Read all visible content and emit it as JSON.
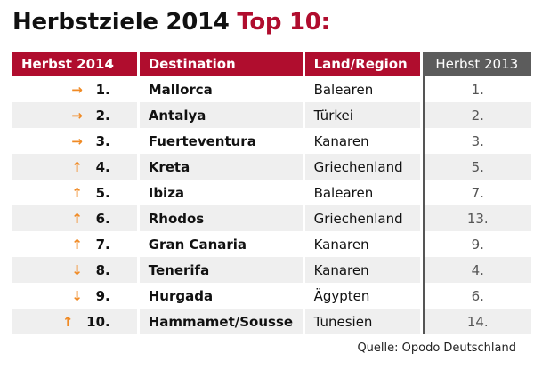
{
  "title": {
    "main": "Herbstziele 2014",
    "accent": "Top 10:"
  },
  "headers": [
    "Herbst 2014",
    "Destination",
    "Land/Region",
    "Herbst 2013"
  ],
  "colors": {
    "header_red": "#b00d2e",
    "header_gray": "#5c5c5c",
    "arrow": "#f08a24"
  },
  "rows": [
    {
      "trend": "→",
      "trend_icon": "arrow-right-icon",
      "rank": "1.",
      "destination": "Mallorca",
      "region": "Balearen",
      "prev": "1."
    },
    {
      "trend": "→",
      "trend_icon": "arrow-right-icon",
      "rank": "2.",
      "destination": "Antalya",
      "region": "Türkei",
      "prev": "2."
    },
    {
      "trend": "→",
      "trend_icon": "arrow-right-icon",
      "rank": "3.",
      "destination": "Fuerteventura",
      "region": "Kanaren",
      "prev": "3."
    },
    {
      "trend": "↑",
      "trend_icon": "arrow-up-icon",
      "rank": "4.",
      "destination": "Kreta",
      "region": "Griechenland",
      "prev": "5."
    },
    {
      "trend": "↑",
      "trend_icon": "arrow-up-icon",
      "rank": "5.",
      "destination": "Ibiza",
      "region": "Balearen",
      "prev": "7."
    },
    {
      "trend": "↑",
      "trend_icon": "arrow-up-icon",
      "rank": "6.",
      "destination": "Rhodos",
      "region": "Griechenland",
      "prev": "13."
    },
    {
      "trend": "↑",
      "trend_icon": "arrow-up-icon",
      "rank": "7.",
      "destination": "Gran Canaria",
      "region": "Kanaren",
      "prev": "9."
    },
    {
      "trend": "↓",
      "trend_icon": "arrow-down-icon",
      "rank": "8.",
      "destination": "Tenerifa",
      "region": "Kanaren",
      "prev": "4."
    },
    {
      "trend": "↓",
      "trend_icon": "arrow-down-icon",
      "rank": "9.",
      "destination": "Hurgada",
      "region": "Ägypten",
      "prev": "6."
    },
    {
      "trend": "↑",
      "trend_icon": "arrow-up-icon",
      "rank": "10.",
      "destination": "Hammamet/Sousse",
      "region": "Tunesien",
      "prev": "14."
    }
  ],
  "source": "Quelle: Opodo Deutschland"
}
